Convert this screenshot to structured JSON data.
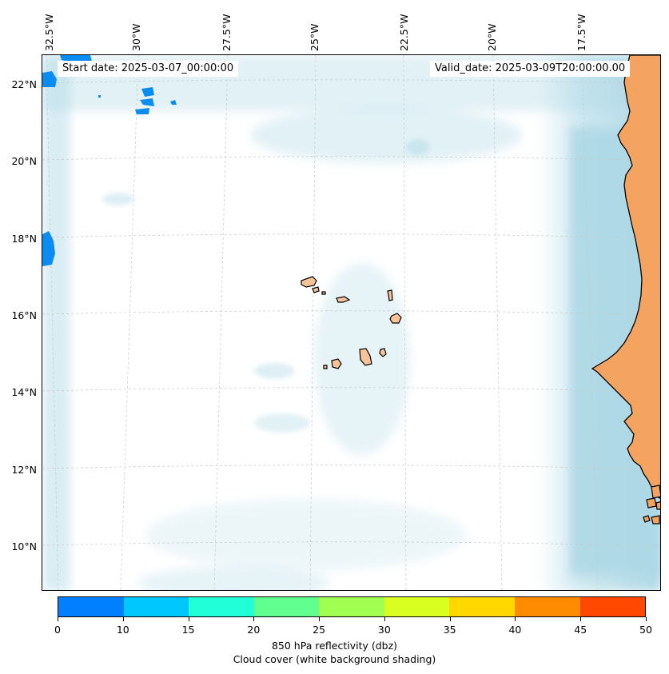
{
  "map": {
    "lon_labels": [
      "32.5°W",
      "30°W",
      "27.5°W",
      "25°W",
      "22.5°W",
      "20°W",
      "17.5°W"
    ],
    "lat_labels": [
      "22°N",
      "20°N",
      "18°N",
      "16°N",
      "14°N",
      "12°N",
      "10°N"
    ],
    "start_date": "Start date: 2025-03-07_00:00:00",
    "valid_date": "Valid_date: 2025-03-09T20:00:00.00",
    "land_color": "#f4a460",
    "cloud_color": "#add8e6",
    "reflectivity_low_color": "#0080ff"
  },
  "colorbar": {
    "colors": [
      "#0080ff",
      "#00c8ff",
      "#20ffd8",
      "#60ff90",
      "#a0ff50",
      "#d8ff20",
      "#ffd800",
      "#ff8c00",
      "#ff4800"
    ],
    "tick_labels": [
      "0",
      "10",
      "15",
      "20",
      "25",
      "30",
      "35",
      "40",
      "45",
      "50"
    ],
    "title_line1": "850 hPa reflectivity (dbz)",
    "title_line2": "Cloud cover (white background shading)"
  }
}
